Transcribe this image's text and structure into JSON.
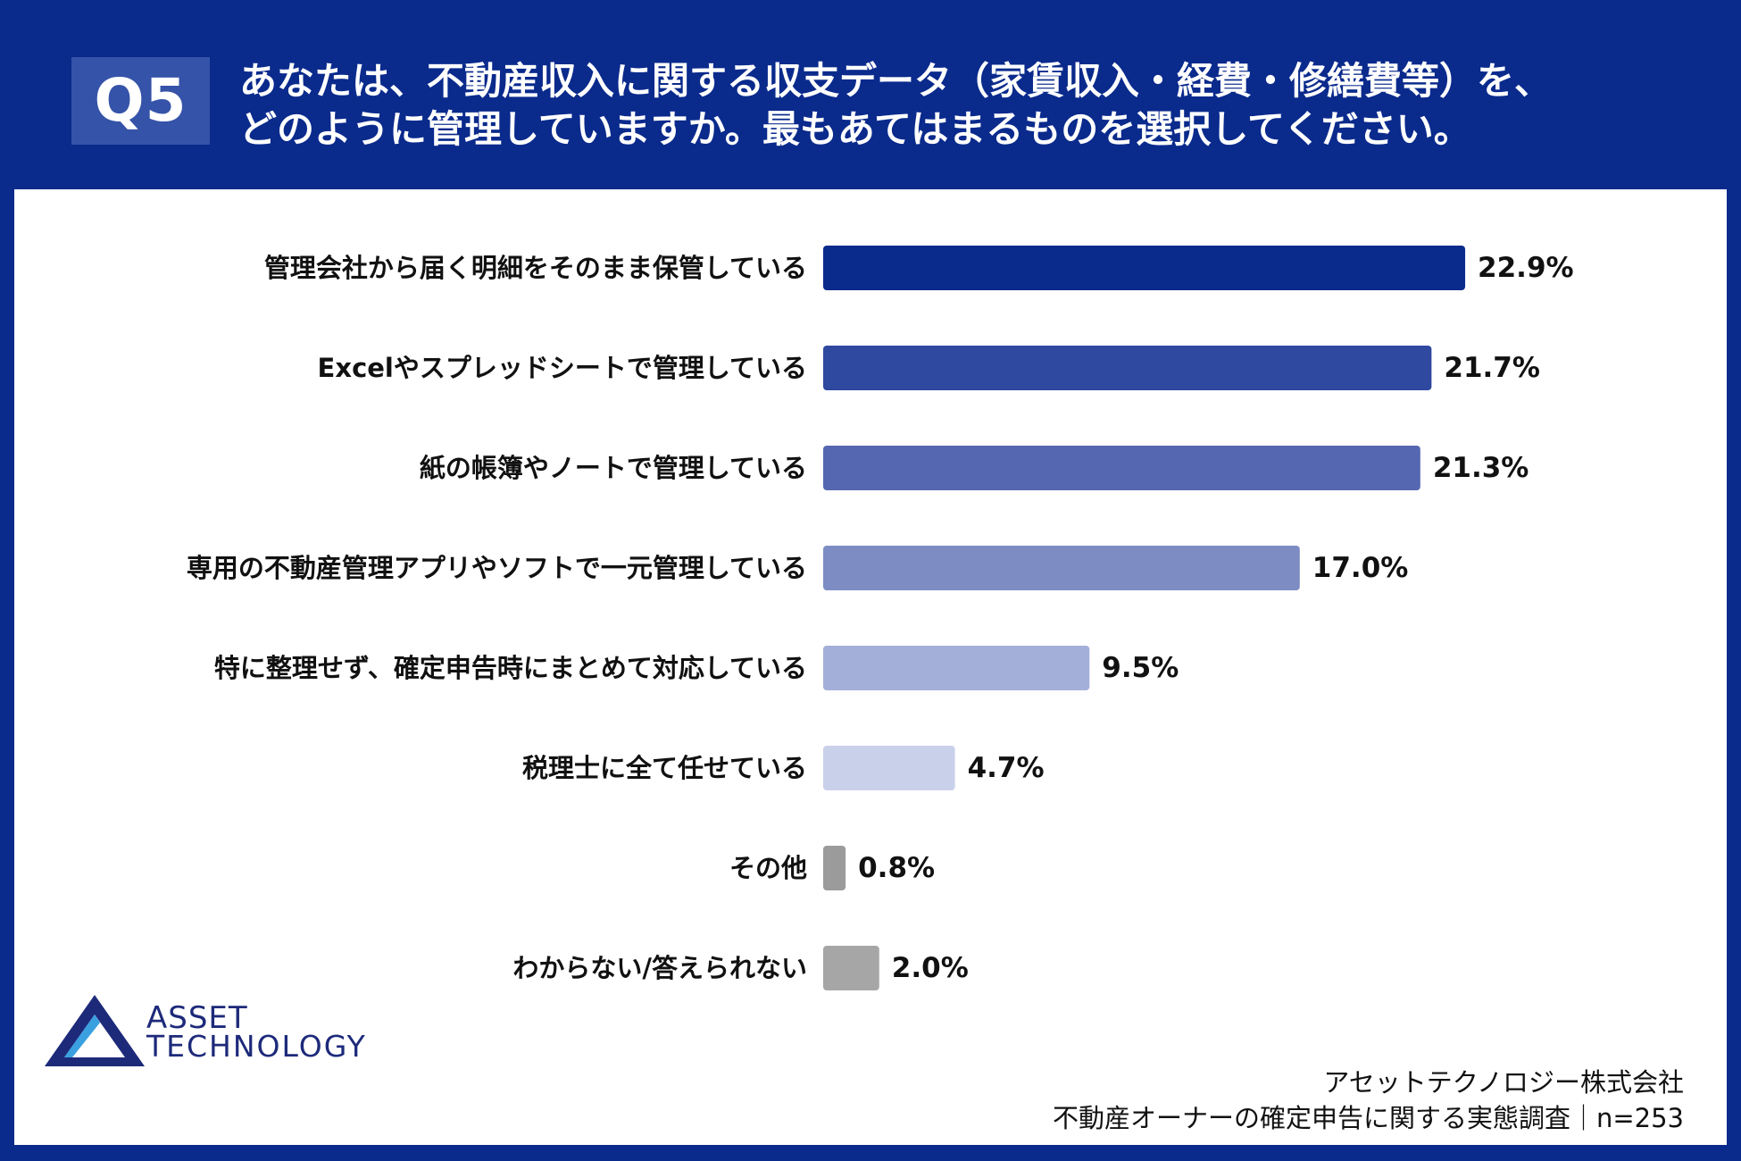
{
  "question": {
    "badge": "Q5",
    "line1": "あなたは、不動産収入に関する収支データ（家賃収入・経費・修繕費等）を、",
    "line2": "どのように管理していますか。最もあてはまるものを選択してください。"
  },
  "chart_data": {
    "type": "bar",
    "orientation": "horizontal",
    "categories": [
      "管理会社から届く明細をそのまま保管している",
      "Excelやスプレッドシートで管理している",
      "紙の帳簿やノートで管理している",
      "専用の不動産管理アプリやソフトで一元管理している",
      "特に整理せず、確定申告時にまとめて対応している",
      "税理士に全て任せている",
      "その他",
      "わからない/答えられない"
    ],
    "values": [
      22.9,
      21.7,
      21.3,
      17.0,
      9.5,
      4.7,
      0.8,
      2.0
    ],
    "value_labels": [
      "22.9%",
      "21.7%",
      "21.3%",
      "17.0%",
      "9.5%",
      "4.7%",
      "0.8%",
      "2.0%"
    ],
    "unit": "%",
    "colors": [
      "#0a2a8c",
      "#2f48a0",
      "#5567b0",
      "#7e8cc4",
      "#a4afd9",
      "#c9d0ea",
      "#9b9b9b",
      "#a6a6a6"
    ],
    "xlim": [
      0,
      25
    ]
  },
  "logo": {
    "line1": "ASSET",
    "line2": "TECHNOLOGY",
    "triangle_color": "#1d2a7a",
    "accent_color": "#3aa0e0"
  },
  "footer": {
    "company": "アセットテクノロジー株式会社",
    "survey": "不動産オーナーの確定申告に関する実態調査｜n=253"
  }
}
